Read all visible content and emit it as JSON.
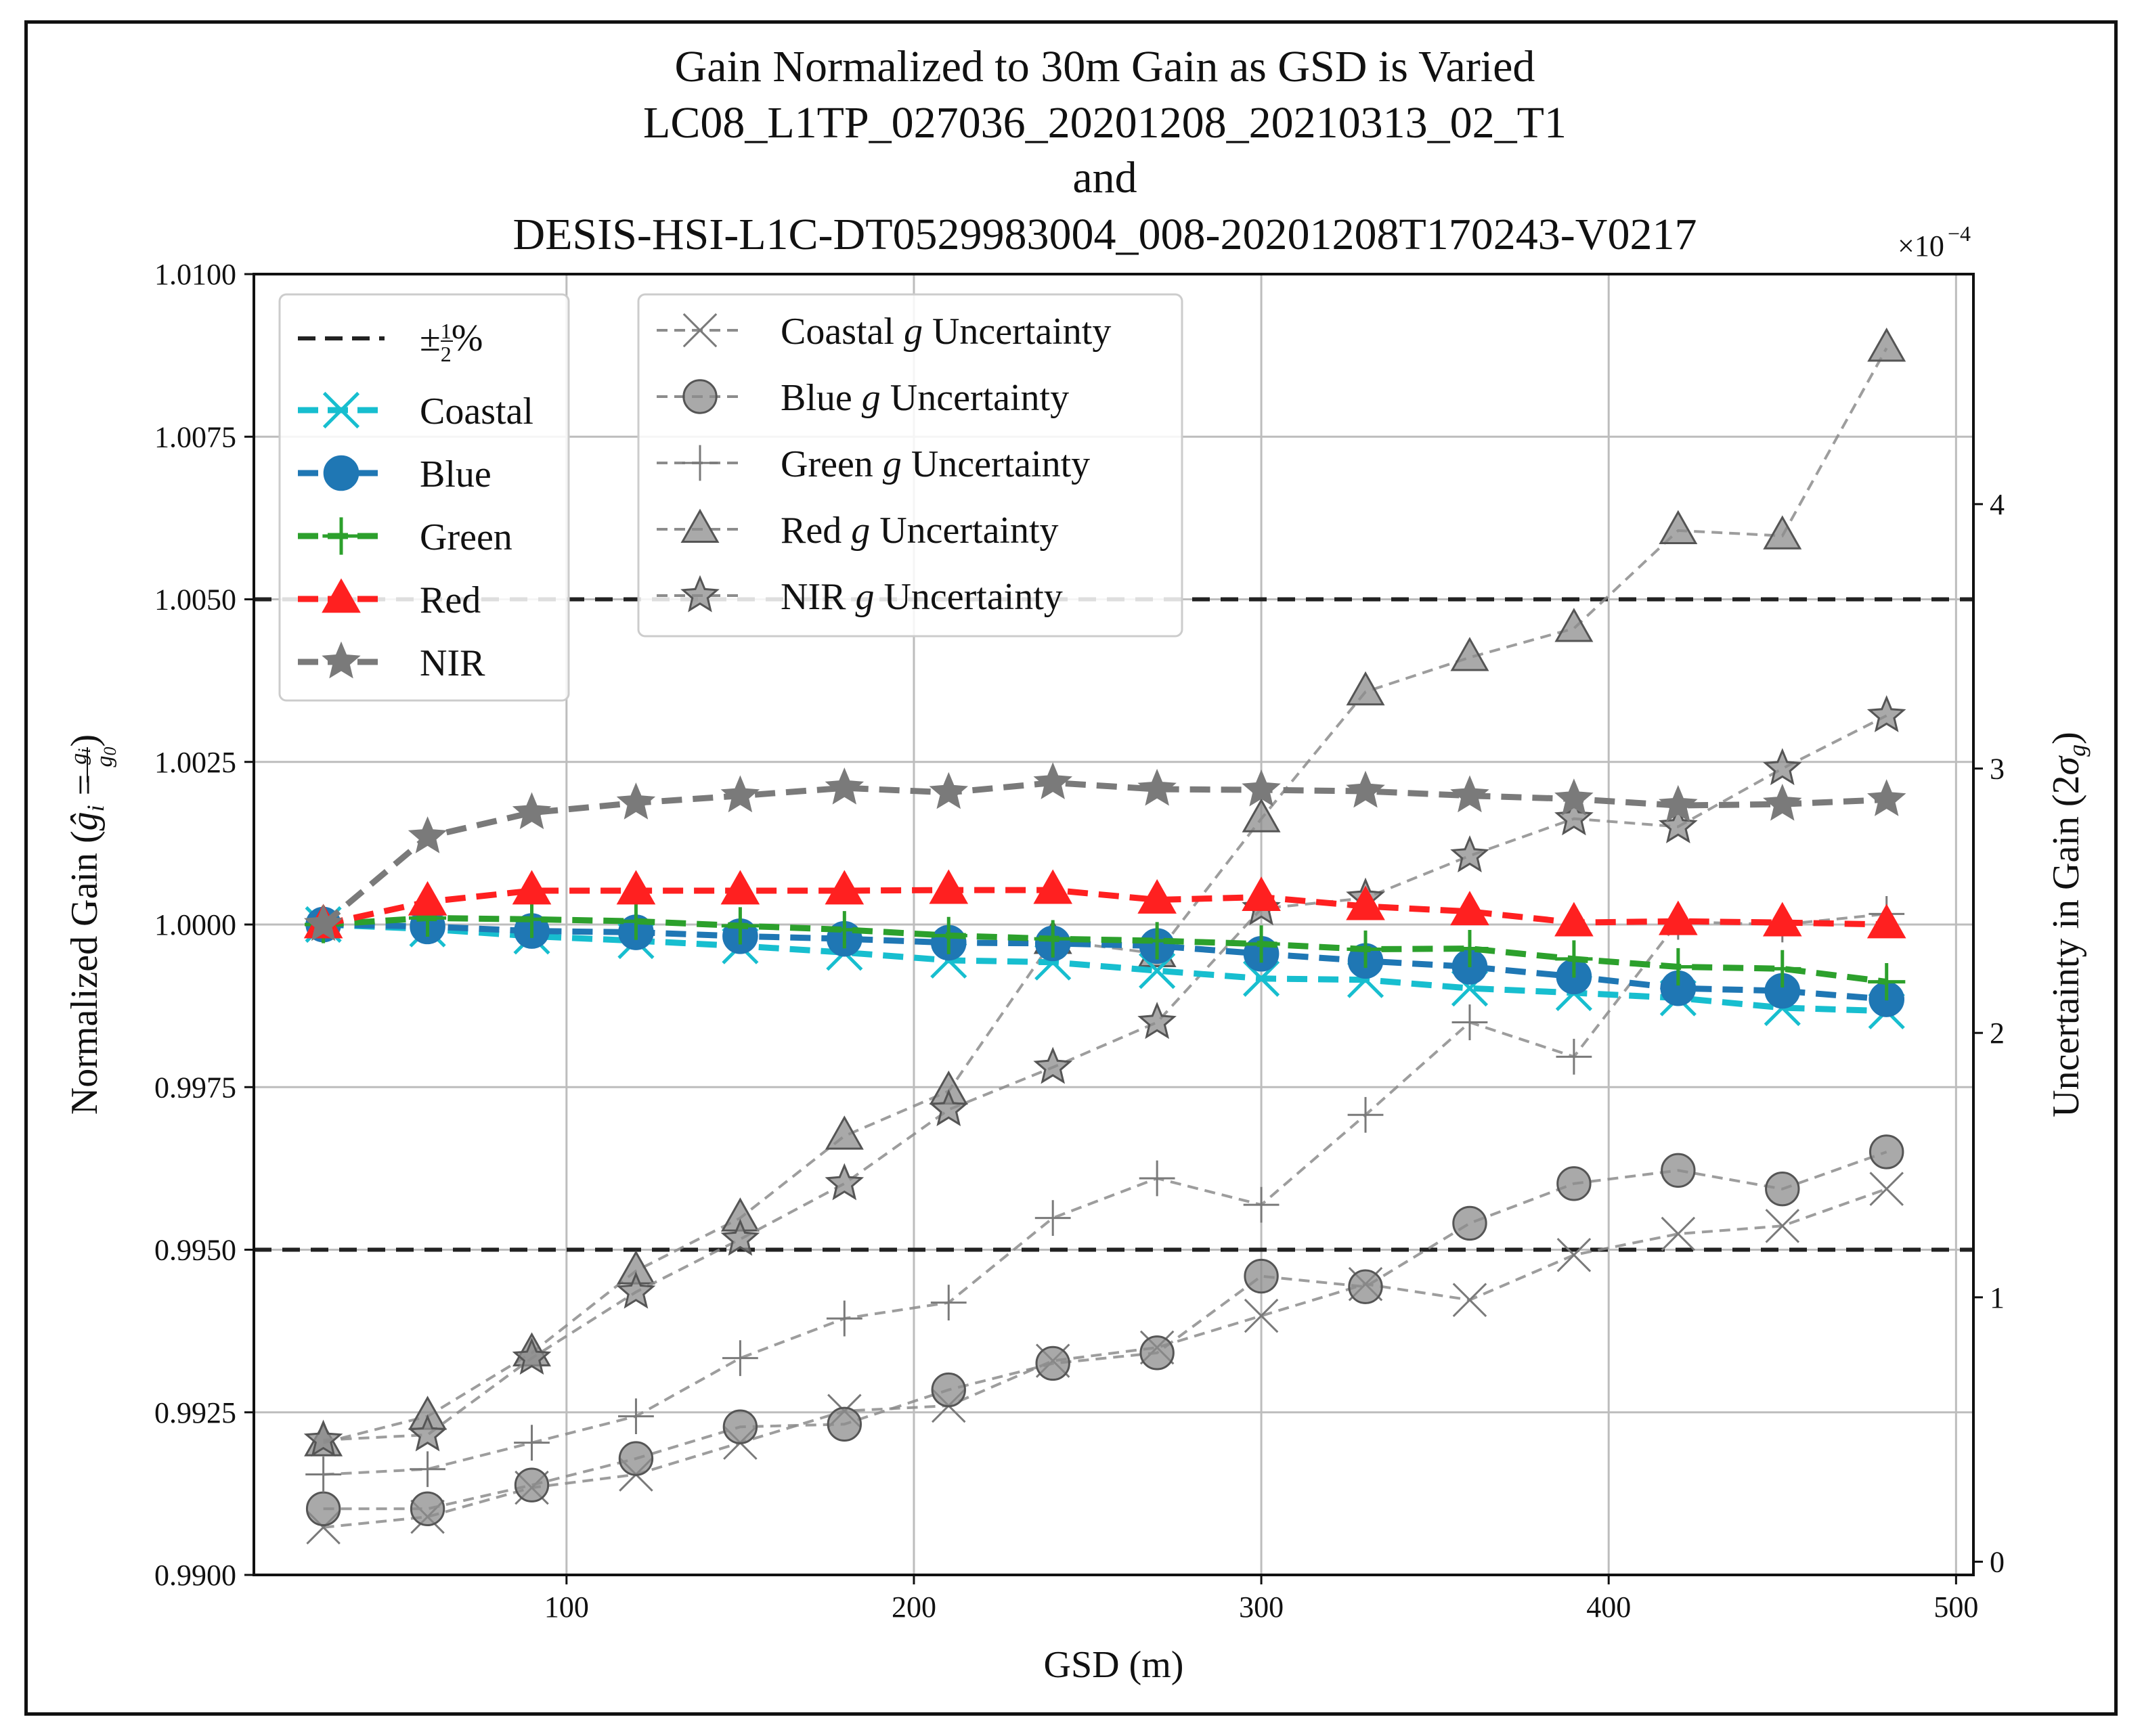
{
  "chart_data": {
    "type": "line",
    "title_lines": [
      "Gain Normalized to 30m Gain as GSD is Varied",
      "LC08_L1TP_027036_20201208_20210313_02_T1",
      "and",
      "DESIS-HSI-L1C-DT0529983004_008-20201208T170243-V0217"
    ],
    "xlabel": "GSD (m)",
    "ylabel_left": "Normalized Gain (ĝi = gi/g0)",
    "ylabel_left_main": "Normalized Gain (",
    "ylabel_left_g": "ĝ",
    "ylabel_left_i": "i",
    "ylabel_left_eq": " = ",
    "ylabel_left_num": "g",
    "ylabel_left_num_sub": "i",
    "ylabel_left_den": "g",
    "ylabel_left_den_sub": "0",
    "ylabel_left_close": ")",
    "ylabel_right": "Uncertainty in Gain (2σg)",
    "ylabel_right_main": "Uncertainty in Gain (2",
    "ylabel_right_sigma": "σ",
    "ylabel_right_sub": "g",
    "ylabel_right_close": ")",
    "right_axis_multiplier": "×10",
    "right_axis_exponent": "−4",
    "xlim": [
      10,
      505
    ],
    "ylim_left": [
      0.99,
      1.01
    ],
    "ylim_right": [
      -0.05,
      4.87
    ],
    "x_ticks": [
      100,
      200,
      300,
      400,
      500
    ],
    "x_tick_labels": [
      "100",
      "200",
      "300",
      "400",
      "500"
    ],
    "y_left_ticks": [
      0.99,
      0.9925,
      0.995,
      0.9975,
      1.0,
      1.0025,
      1.005,
      1.0075,
      1.01
    ],
    "y_left_tick_labels": [
      "0.9900",
      "0.9925",
      "0.9950",
      "0.9975",
      "1.0000",
      "1.0025",
      "1.0050",
      "1.0075",
      "1.0100"
    ],
    "y_right_ticks": [
      0,
      1,
      2,
      3,
      4
    ],
    "y_right_tick_labels": [
      "0",
      "1",
      "2",
      "3",
      "4"
    ],
    "grid": true,
    "x": [
      30,
      60,
      90,
      120,
      150,
      180,
      210,
      240,
      270,
      300,
      330,
      360,
      390,
      420,
      450,
      480
    ],
    "reference_lines": {
      "label": "±½%",
      "label_pm": "±",
      "label_num": "1",
      "label_den": "2",
      "label_pct": "%",
      "values": [
        1.005,
        0.995
      ],
      "color": "#222222"
    },
    "series_left": [
      {
        "name": "Coastal",
        "color": "#17becf",
        "marker": "x",
        "values": [
          1.0,
          0.99993,
          0.99982,
          0.99975,
          0.99967,
          0.99957,
          0.99945,
          0.99942,
          0.99929,
          0.99917,
          0.99915,
          0.99902,
          0.99895,
          0.99887,
          0.99872,
          0.99867
        ]
      },
      {
        "name": "Blue",
        "color": "#1f77b4",
        "marker": "circle",
        "values": [
          1.0,
          0.99997,
          0.9999,
          0.99988,
          0.99982,
          0.99978,
          0.99972,
          0.99971,
          0.99967,
          0.99955,
          0.99944,
          0.99935,
          0.9992,
          0.99902,
          0.99898,
          0.99885
        ]
      },
      {
        "name": "Green",
        "color": "#2ca02c",
        "marker": "plus",
        "values": [
          1.0,
          1.0001,
          1.00008,
          1.00005,
          0.99998,
          0.99992,
          0.99983,
          0.99978,
          0.99975,
          0.9997,
          0.99962,
          0.99963,
          0.99947,
          0.99935,
          0.99932,
          0.99912
        ]
      },
      {
        "name": "Red",
        "color": "#ff2020",
        "marker": "triangle",
        "values": [
          1.0,
          1.00035,
          1.00052,
          1.00052,
          1.00052,
          1.00052,
          1.00053,
          1.00053,
          1.00038,
          1.00042,
          1.00028,
          1.0002,
          1.00003,
          1.00005,
          1.00003,
          1.0
        ]
      },
      {
        "name": "NIR",
        "color": "#7a7a7a",
        "marker": "star",
        "values": [
          1.0,
          1.00135,
          1.00172,
          1.00187,
          1.00198,
          1.0021,
          1.00203,
          1.00218,
          1.00208,
          1.00207,
          1.00205,
          1.00198,
          1.00193,
          1.00183,
          1.00185,
          1.00192
        ]
      }
    ],
    "series_right": [
      {
        "name": "Coastal g Uncertainty",
        "band": "Coastal",
        "marker": "x",
        "values": [
          0.13,
          0.17,
          0.28,
          0.33,
          0.45,
          0.57,
          0.59,
          0.76,
          0.81,
          0.93,
          1.05,
          0.99,
          1.16,
          1.24,
          1.27,
          1.41
        ]
      },
      {
        "name": "Blue g Uncertainty",
        "band": "Blue",
        "marker": "circle",
        "values": [
          0.2,
          0.2,
          0.29,
          0.39,
          0.51,
          0.52,
          0.65,
          0.75,
          0.79,
          1.08,
          1.04,
          1.28,
          1.43,
          1.48,
          1.41,
          1.55
        ]
      },
      {
        "name": "Green g Uncertainty",
        "band": "Green",
        "marker": "plus",
        "values": [
          0.33,
          0.35,
          0.45,
          0.55,
          0.77,
          0.92,
          0.98,
          1.3,
          1.45,
          1.35,
          1.69,
          2.04,
          1.91,
          2.42,
          2.41,
          2.45
        ]
      },
      {
        "name": "Red g Uncertainty",
        "band": "Red",
        "marker": "triangle",
        "values": [
          0.45,
          0.55,
          0.79,
          1.1,
          1.3,
          1.61,
          1.78,
          2.35,
          2.3,
          2.81,
          3.29,
          3.42,
          3.53,
          3.9,
          3.88,
          4.59
        ]
      },
      {
        "name": "NIR g Uncertainty",
        "band": "NIR",
        "marker": "star",
        "values": [
          0.46,
          0.48,
          0.77,
          1.02,
          1.22,
          1.43,
          1.71,
          1.87,
          2.04,
          2.47,
          2.51,
          2.67,
          2.81,
          2.78,
          3.0,
          3.2
        ]
      }
    ],
    "legend_left_placement": "upper-left",
    "legend_right_placement": "upper-center",
    "legend_right_labels": [
      {
        "band": "Coastal",
        "g": "g",
        "suffix": "Uncertainty"
      },
      {
        "band": "Blue",
        "g": "g",
        "suffix": "Uncertainty"
      },
      {
        "band": "Green",
        "g": "g",
        "suffix": "Uncertainty"
      },
      {
        "band": "Red",
        "g": "g",
        "suffix": "Uncertainty"
      },
      {
        "band": "NIR",
        "g": "g",
        "suffix": "Uncertainty"
      }
    ],
    "uncertainty_color": "#8c8c8c"
  }
}
